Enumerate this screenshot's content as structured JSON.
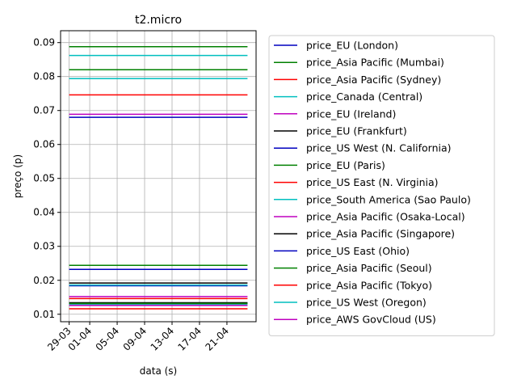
{
  "chart_data": {
    "type": "line",
    "title": "t2.micro",
    "xlabel": "data (s)",
    "ylabel": "preço (p)",
    "x_ticks": [
      "29-03",
      "01-04",
      "05-04",
      "09-04",
      "13-04",
      "17-04",
      "21-04"
    ],
    "x_start": "29-03",
    "x_end": "24-04",
    "ylim": [
      0.0078,
      0.0935
    ],
    "y_ticks": [
      "0.01",
      "0.02",
      "0.03",
      "0.04",
      "0.05",
      "0.06",
      "0.07",
      "0.08",
      "0.09"
    ],
    "grid": true,
    "legend_position": "right",
    "series": [
      {
        "name": "price_EU (London)",
        "color": "#0000bf",
        "value": 0.0132
      },
      {
        "name": "price_Asia Pacific (Mumbai)",
        "color": "#008000",
        "value": 0.0244
      },
      {
        "name": "price_Asia Pacific (Sydney)",
        "color": "#ff0000",
        "value": 0.0146
      },
      {
        "name": "price_Canada (Central)",
        "color": "#00bfbf",
        "value": 0.0128
      },
      {
        "name": "price_EU (Ireland)",
        "color": "#bf00bf",
        "value": 0.0126
      },
      {
        "name": "price_EU (Frankfurt)",
        "color": "#000000",
        "value": 0.0134
      },
      {
        "name": "price_US West (N. California)",
        "color": "#0000bf",
        "value": 0.0184
      },
      {
        "name": "price_EU (Paris)",
        "color": "#008000",
        "value": 0.0132
      },
      {
        "name": "price_US East (N. Virginia)",
        "color": "#ff0000",
        "value": 0.0116
      },
      {
        "name": "price_South America (Sao Paulo)",
        "color": "#00bfbf",
        "value": 0.0186
      },
      {
        "name": "price_Asia Pacific (Osaka-Local)",
        "color": "#bf00bf",
        "value": 0.0152
      },
      {
        "name": "price_Asia Pacific (Singapore)",
        "color": "#000000",
        "value": 0.0192
      },
      {
        "name": "price_US East (Ohio)",
        "color": "#0000bf",
        "value": 0.0232
      },
      {
        "name": "price_Asia Pacific (Seoul)",
        "color": "#008000",
        "value": 0.0888
      },
      {
        "name": "price_Asia Pacific (Tokyo)",
        "color": "#ff0000",
        "value": 0.0746
      },
      {
        "name": "price_US West (Oregon)",
        "color": "#00bfbf",
        "value": 0.0794
      },
      {
        "name": "price_AWS GovCloud (US)",
        "color": "#bf00bf",
        "value": 0.0689
      }
    ],
    "extra_lines": [
      {
        "color": "#008000",
        "value": 0.082
      },
      {
        "color": "#00bfbf",
        "value": 0.0862
      },
      {
        "color": "#0000bf",
        "value": 0.068
      }
    ]
  }
}
